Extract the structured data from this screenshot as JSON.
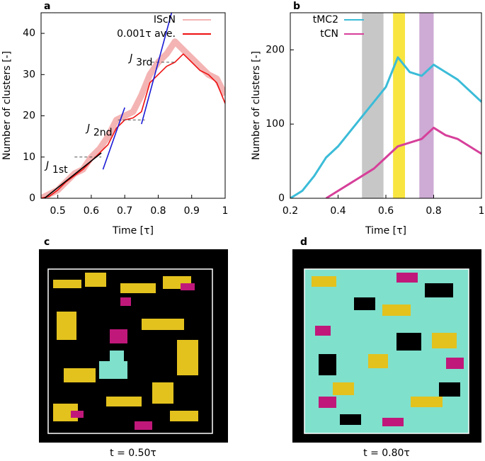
{
  "chart_data": [
    {
      "type": "line",
      "panel": "a",
      "xlabel": "Time [τ]",
      "ylabel": "Number of clusters [-]",
      "xlim": [
        0.45,
        1
      ],
      "xticks": [
        0.5,
        0.6,
        0.7,
        0.8,
        0.9,
        1
      ],
      "ylim": [
        0,
        45
      ],
      "yticks": [
        0,
        10,
        20,
        30,
        40
      ],
      "legend": "upper right",
      "x": [
        0.45,
        0.475,
        0.5,
        0.525,
        0.55,
        0.575,
        0.6,
        0.625,
        0.65,
        0.675,
        0.7,
        0.725,
        0.75,
        0.775,
        0.8,
        0.825,
        0.85,
        0.875,
        0.9,
        0.925,
        0.95,
        0.975,
        1.0
      ],
      "series": [
        {
          "name": "IScN",
          "color": "#f4b4b4",
          "values": [
            0,
            1,
            2,
            4,
            6,
            7,
            10,
            12,
            15,
            19,
            20,
            21,
            25,
            30,
            33,
            35,
            38,
            36,
            34,
            32,
            30,
            29,
            25
          ]
        },
        {
          "name": "0.001τ ave.",
          "color": "#ee1111",
          "values": [
            0,
            0.5,
            2,
            4,
            5.5,
            7,
            9,
            11,
            13,
            17,
            19,
            19.5,
            21,
            28,
            30,
            32,
            33,
            35,
            33,
            31,
            30,
            28,
            23
          ]
        }
      ],
      "fit_lines": [
        {
          "symbol": "J",
          "subscript": "1st",
          "color": "#000000",
          "x": [
            0.46,
            0.63
          ],
          "y": [
            0,
            11
          ]
        },
        {
          "symbol": "J",
          "subscript": "2nd",
          "color": "#1a1ad6",
          "x": [
            0.635,
            0.7
          ],
          "y": [
            7,
            22
          ]
        },
        {
          "symbol": "J",
          "subscript": "3rd",
          "color": "#1a1ad6",
          "x": [
            0.75,
            0.84
          ],
          "y": [
            18,
            45
          ]
        }
      ],
      "reference_lines": [
        {
          "x": [
            0.55,
            0.63
          ],
          "y": 10
        },
        {
          "x": [
            0.68,
            0.76
          ],
          "y": 19
        },
        {
          "x": [
            0.78,
            0.85
          ],
          "y": 33
        }
      ]
    },
    {
      "type": "line",
      "panel": "b",
      "xlabel": "Time [τ]",
      "ylabel": "Number of clusters [-]",
      "xlim": [
        0.2,
        1
      ],
      "xticks": [
        0.2,
        0.4,
        0.6,
        0.8,
        1
      ],
      "ylim": [
        0,
        250
      ],
      "yticks": [
        0,
        100,
        200
      ],
      "legend": "upper left",
      "x": [
        0.2,
        0.25,
        0.3,
        0.35,
        0.4,
        0.45,
        0.5,
        0.55,
        0.6,
        0.65,
        0.7,
        0.75,
        0.8,
        0.85,
        0.9,
        0.95,
        1.0
      ],
      "series": [
        {
          "name": "tMC2",
          "color": "#3bbcd8",
          "values": [
            0,
            10,
            30,
            55,
            70,
            90,
            110,
            130,
            150,
            190,
            170,
            165,
            180,
            170,
            160,
            145,
            130
          ]
        },
        {
          "name": "tCN",
          "color": "#d6409a",
          "values": [
            null,
            null,
            null,
            0,
            10,
            20,
            30,
            40,
            55,
            70,
            75,
            80,
            95,
            85,
            80,
            70,
            60
          ]
        }
      ],
      "spans": [
        {
          "x": [
            0.5,
            0.59
          ],
          "color": "#bdbdbd"
        },
        {
          "x": [
            0.63,
            0.68
          ],
          "color": "#f7e01e"
        },
        {
          "x": [
            0.74,
            0.8
          ],
          "color": "#c49ccc"
        }
      ]
    }
  ],
  "images": [
    {
      "label": "c",
      "caption": "t = 0.50τ"
    },
    {
      "label": "d",
      "caption": "t = 0.80τ"
    }
  ]
}
